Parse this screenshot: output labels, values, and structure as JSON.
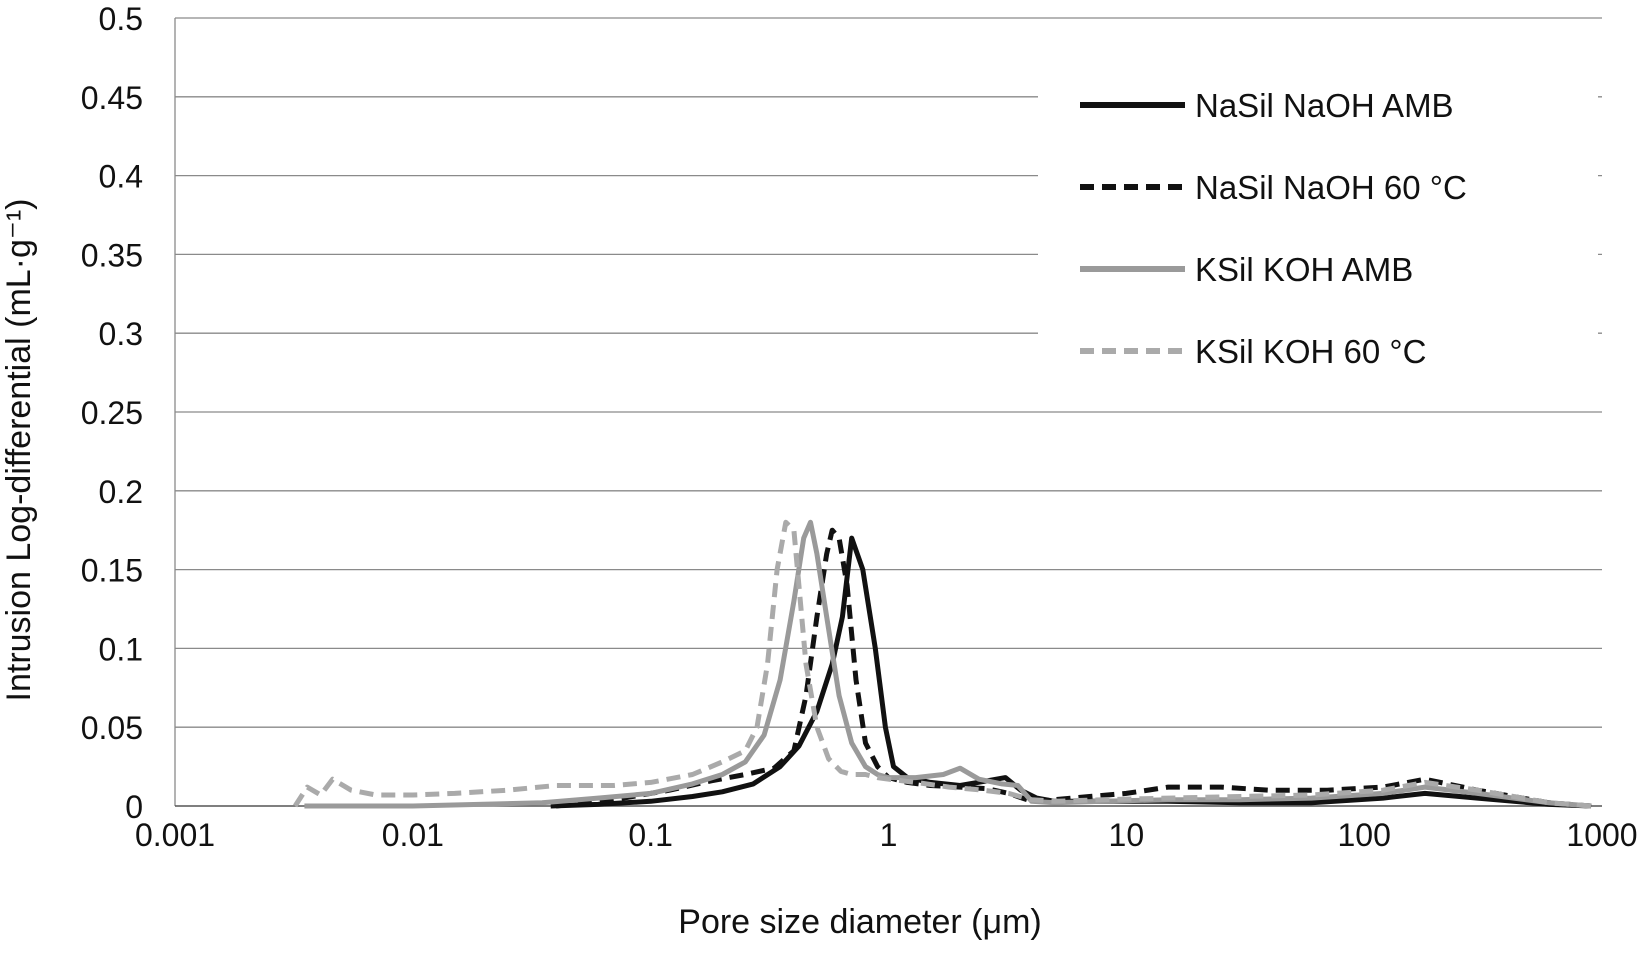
{
  "chart_data": {
    "type": "line",
    "title": "",
    "xlabel": "Pore size diameter (μm)",
    "ylabel": "Intrusion Log-differential (mL·g⁻¹)",
    "x_scale": "log",
    "xlim": [
      0.001,
      1000
    ],
    "ylim": [
      0,
      0.5
    ],
    "x_ticks": [
      0.001,
      0.01,
      0.1,
      1,
      10,
      100,
      1000
    ],
    "x_tick_labels": [
      "0.001",
      "0.01",
      "0.1",
      "1",
      "10",
      "100",
      "1000"
    ],
    "y_ticks": [
      0,
      0.05,
      0.1,
      0.15,
      0.2,
      0.25,
      0.3,
      0.35,
      0.4,
      0.45,
      0.5
    ],
    "y_tick_labels": [
      "0",
      "0.05",
      "0.1",
      "0.15",
      "0.2",
      "0.25",
      "0.3",
      "0.35",
      "0.4",
      "0.45",
      "0.5"
    ],
    "grid": "horizontal",
    "legend_position": "top-right",
    "series": [
      {
        "name": "NaSil NaOH AMB",
        "color": "#111111",
        "dash": "solid",
        "x": [
          0.038,
          0.06,
          0.1,
          0.15,
          0.2,
          0.27,
          0.35,
          0.42,
          0.5,
          0.58,
          0.64,
          0.7,
          0.78,
          0.88,
          0.97,
          1.05,
          1.2,
          1.5,
          2.0,
          2.6,
          3.1,
          3.6,
          4.2,
          5.0,
          8,
          15,
          30,
          60,
          120,
          180,
          300,
          600,
          900
        ],
        "y": [
          0.0,
          0.001,
          0.003,
          0.006,
          0.009,
          0.014,
          0.025,
          0.038,
          0.06,
          0.09,
          0.12,
          0.17,
          0.15,
          0.1,
          0.05,
          0.025,
          0.018,
          0.015,
          0.013,
          0.016,
          0.018,
          0.01,
          0.005,
          0.003,
          0.003,
          0.003,
          0.002,
          0.002,
          0.005,
          0.008,
          0.005,
          0.001,
          0.0
        ]
      },
      {
        "name": "NaSil NaOH 60 °C",
        "color": "#111111",
        "dash": "dashed",
        "x": [
          0.04,
          0.07,
          0.12,
          0.18,
          0.25,
          0.33,
          0.4,
          0.45,
          0.5,
          0.55,
          0.58,
          0.62,
          0.67,
          0.73,
          0.8,
          0.9,
          1.0,
          1.2,
          1.5,
          2.0,
          2.6,
          3.2,
          4.0,
          5.0,
          7,
          10,
          15,
          25,
          40,
          70,
          120,
          180,
          300,
          600,
          900
        ],
        "y": [
          0.0,
          0.004,
          0.01,
          0.016,
          0.02,
          0.024,
          0.035,
          0.07,
          0.12,
          0.16,
          0.175,
          0.17,
          0.14,
          0.08,
          0.04,
          0.025,
          0.018,
          0.015,
          0.013,
          0.012,
          0.011,
          0.008,
          0.003,
          0.004,
          0.006,
          0.008,
          0.012,
          0.012,
          0.01,
          0.01,
          0.012,
          0.017,
          0.01,
          0.002,
          0.0
        ]
      },
      {
        "name": "KSil KOH AMB",
        "color": "#9a9a9a",
        "dash": "solid",
        "x": [
          0.0035,
          0.01,
          0.035,
          0.06,
          0.1,
          0.15,
          0.2,
          0.25,
          0.3,
          0.35,
          0.4,
          0.44,
          0.47,
          0.5,
          0.55,
          0.62,
          0.7,
          0.8,
          0.9,
          1.0,
          1.3,
          1.7,
          2.0,
          2.4,
          3.0,
          3.5,
          4.0,
          5.0,
          8,
          15,
          30,
          60,
          120,
          180,
          300,
          600,
          900
        ],
        "y": [
          0.0,
          0.0,
          0.002,
          0.005,
          0.008,
          0.014,
          0.02,
          0.028,
          0.045,
          0.08,
          0.13,
          0.17,
          0.18,
          0.16,
          0.12,
          0.07,
          0.04,
          0.025,
          0.02,
          0.018,
          0.018,
          0.02,
          0.024,
          0.017,
          0.014,
          0.013,
          0.003,
          0.002,
          0.003,
          0.004,
          0.004,
          0.005,
          0.008,
          0.012,
          0.008,
          0.002,
          0.0
        ]
      },
      {
        "name": "KSil KOH 60 °C",
        "color": "#aaaaaa",
        "dash": "dashed",
        "x": [
          0.0032,
          0.0036,
          0.0041,
          0.0046,
          0.0055,
          0.007,
          0.01,
          0.015,
          0.025,
          0.04,
          0.07,
          0.1,
          0.15,
          0.2,
          0.25,
          0.28,
          0.31,
          0.34,
          0.37,
          0.4,
          0.42,
          0.45,
          0.5,
          0.56,
          0.63,
          0.7,
          0.8,
          0.9,
          1.0,
          1.3,
          1.8,
          2.5,
          3.2,
          4.0,
          5,
          8,
          15,
          30,
          60,
          120,
          180,
          300,
          600,
          900
        ],
        "y": [
          0.0,
          0.012,
          0.007,
          0.017,
          0.01,
          0.007,
          0.007,
          0.008,
          0.01,
          0.013,
          0.013,
          0.015,
          0.02,
          0.028,
          0.035,
          0.05,
          0.09,
          0.15,
          0.18,
          0.175,
          0.14,
          0.09,
          0.05,
          0.03,
          0.022,
          0.02,
          0.02,
          0.018,
          0.017,
          0.015,
          0.012,
          0.01,
          0.008,
          0.004,
          0.003,
          0.004,
          0.005,
          0.006,
          0.007,
          0.01,
          0.015,
          0.01,
          0.002,
          0.0
        ]
      }
    ]
  }
}
